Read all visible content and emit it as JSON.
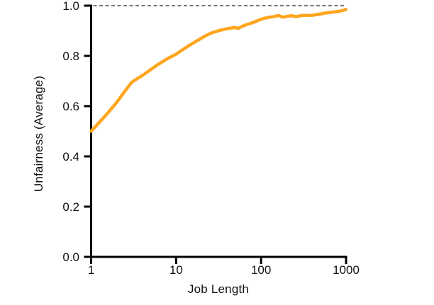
{
  "chart_data": {
    "type": "line",
    "title": "",
    "xlabel": "Job Length",
    "ylabel": "Unfairness (Average)",
    "x_scale": "log",
    "xlim": [
      1,
      1000
    ],
    "ylim": [
      0.0,
      1.0
    ],
    "grid": false,
    "legend": "none",
    "x_ticks": [
      {
        "value": 1,
        "label": "1"
      },
      {
        "value": 10,
        "label": "10"
      },
      {
        "value": 100,
        "label": "100"
      },
      {
        "value": 1000,
        "label": "1000"
      }
    ],
    "y_ticks": [
      {
        "value": 0.0,
        "label": "0.0"
      },
      {
        "value": 0.2,
        "label": "0.2"
      },
      {
        "value": 0.4,
        "label": "0.4"
      },
      {
        "value": 0.6,
        "label": "0.6"
      },
      {
        "value": 0.8,
        "label": "0.8"
      },
      {
        "value": 1.0,
        "label": "1.0"
      }
    ],
    "reference_line": {
      "y": 1.0,
      "style": "dashed",
      "color": "#4a4a4a"
    },
    "series": [
      {
        "name": "unfairness-average",
        "color": "#FFA51E",
        "points": [
          [
            1,
            0.5
          ],
          [
            1.5,
            0.565
          ],
          [
            2,
            0.615
          ],
          [
            2.5,
            0.66
          ],
          [
            3,
            0.695
          ],
          [
            3.5,
            0.71
          ],
          [
            4,
            0.722
          ],
          [
            4.5,
            0.734
          ],
          [
            5,
            0.745
          ],
          [
            6,
            0.764
          ],
          [
            7,
            0.778
          ],
          [
            8,
            0.79
          ],
          [
            9,
            0.799
          ],
          [
            10,
            0.807
          ],
          [
            12,
            0.825
          ],
          [
            14,
            0.84
          ],
          [
            16,
            0.852
          ],
          [
            18,
            0.862
          ],
          [
            20,
            0.871
          ],
          [
            23,
            0.883
          ],
          [
            26,
            0.891
          ],
          [
            30,
            0.898
          ],
          [
            34,
            0.903
          ],
          [
            38,
            0.907
          ],
          [
            43,
            0.91
          ],
          [
            48,
            0.913
          ],
          [
            54,
            0.91
          ],
          [
            60,
            0.918
          ],
          [
            68,
            0.925
          ],
          [
            76,
            0.93
          ],
          [
            85,
            0.936
          ],
          [
            95,
            0.943
          ],
          [
            105,
            0.948
          ],
          [
            120,
            0.953
          ],
          [
            140,
            0.956
          ],
          [
            160,
            0.961
          ],
          [
            180,
            0.954
          ],
          [
            205,
            0.958
          ],
          [
            230,
            0.96
          ],
          [
            260,
            0.956
          ],
          [
            300,
            0.961
          ],
          [
            340,
            0.962
          ],
          [
            390,
            0.961
          ],
          [
            440,
            0.964
          ],
          [
            500,
            0.967
          ],
          [
            560,
            0.97
          ],
          [
            640,
            0.973
          ],
          [
            720,
            0.975
          ],
          [
            820,
            0.977
          ],
          [
            910,
            0.981
          ],
          [
            1000,
            0.985
          ]
        ]
      }
    ]
  },
  "colors": {
    "axis": "#000000",
    "tick_text": "#111111",
    "background": "#FFFFFF",
    "line": "#FFA51E",
    "refline": "#4a4a4a"
  }
}
